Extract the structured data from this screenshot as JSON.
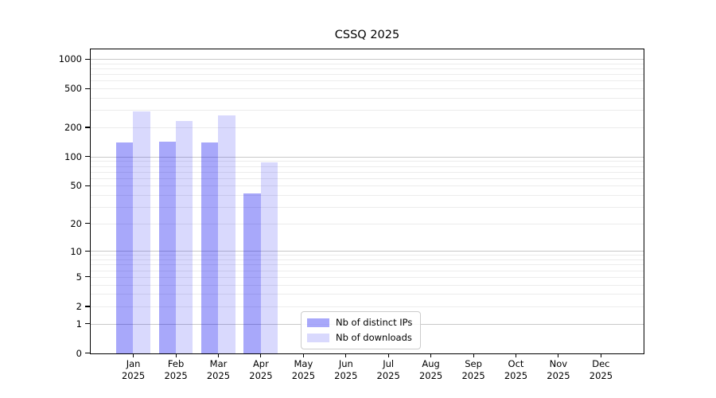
{
  "chart_data": {
    "type": "bar",
    "title": "CSSQ 2025",
    "categories": [
      "Jan",
      "Feb",
      "Mar",
      "Apr",
      "May",
      "Jun",
      "Jul",
      "Aug",
      "Sep",
      "Oct",
      "Nov",
      "Dec"
    ],
    "category_year": "2025",
    "series": [
      {
        "name": "Nb of distinct IPs",
        "color": "#0000f0",
        "opacity": 0.34,
        "values": [
          140,
          143,
          141,
          42,
          null,
          null,
          null,
          null,
          null,
          null,
          null,
          null
        ]
      },
      {
        "name": "Nb of downloads",
        "color": "#0000f0",
        "opacity": 0.15,
        "values": [
          295,
          235,
          265,
          88,
          null,
          null,
          null,
          null,
          null,
          null,
          null,
          null
        ]
      }
    ],
    "yscale": "log1p",
    "yticks": [
      1000,
      500,
      200,
      100,
      50,
      20,
      10,
      5,
      2,
      1,
      0
    ],
    "ylim": [
      0,
      1250
    ],
    "xlabel": "",
    "ylabel": "",
    "grid": {
      "major_at": [
        1,
        10,
        100,
        1000
      ],
      "major_color": "#c9c9c9",
      "minor_color": "#ececec"
    },
    "legend": {
      "position": "lower-center"
    },
    "axis_color": "#000000"
  }
}
